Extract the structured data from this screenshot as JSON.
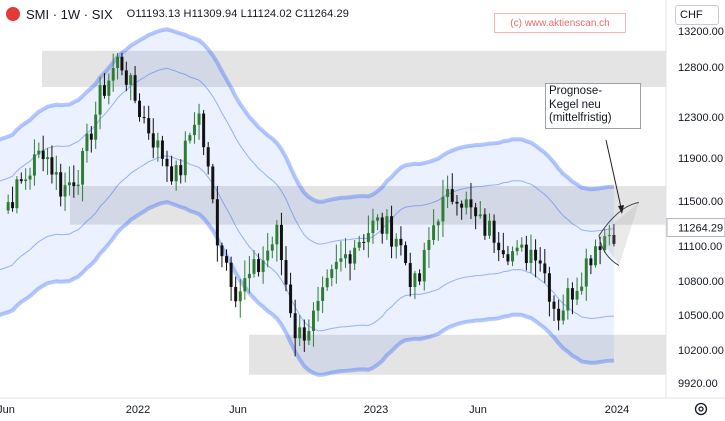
{
  "header": {
    "symbol": "SMI · 1W · SIX",
    "ohlc": "O11193.13 H11309.94 L11124.02 C11264.29"
  },
  "watermark": "(c) www.aktienscan.ch",
  "currency": "CHF",
  "annotation": "Prognose-\nKegel neu\n(mittelfristig)",
  "colors": {
    "bull": "#2e7d32",
    "bear": "#111111",
    "band": "#2962ff",
    "zone": "#9e9e9e",
    "accent": "#e53935"
  },
  "icons": [
    "exchange-logo-icon",
    "settings-gear-icon"
  ],
  "chart_data": {
    "type": "candlestick",
    "y_axis_ticks": [
      13200,
      12800,
      12300,
      11900,
      11500,
      11100,
      10800,
      10500,
      10200,
      9920
    ],
    "y_axis_tick_labels": [
      "13200.00",
      "12800.00",
      "12300.00",
      "11900.00",
      "11500.00",
      "11100.00",
      "10800.00",
      "10500.00",
      "10200.00",
      "9920.00"
    ],
    "last_price_label": "11264.29",
    "x_axis_labels": [
      "Jun",
      "2022",
      "Jun",
      "2023",
      "Jun",
      "2024"
    ],
    "ylim": [
      9850,
      13260
    ],
    "resistance_zones": [
      [
        12600,
        12980
      ],
      [
        11290,
        11640
      ],
      [
        9990,
        10330
      ]
    ],
    "close_path": [
      [
        "2021-05",
        11200
      ],
      [
        "2021-07",
        11700
      ],
      [
        "2021-08",
        12000
      ],
      [
        "2021-09",
        11600
      ],
      [
        "2021-10",
        11800
      ],
      [
        "2021-11",
        12500
      ],
      [
        "2021-12",
        12900
      ],
      [
        "2022-01",
        12400
      ],
      [
        "2022-02",
        12000
      ],
      [
        "2022-03",
        11700
      ],
      [
        "2022-04",
        12400
      ],
      [
        "2022-05",
        11200
      ],
      [
        "2022-06",
        10700
      ],
      [
        "2022-07",
        10900
      ],
      [
        "2022-08",
        11200
      ],
      [
        "2022-09",
        10300
      ],
      [
        "2022-10",
        10500
      ],
      [
        "2022-11",
        10900
      ],
      [
        "2022-12",
        11150
      ],
      [
        "2023-01",
        11300
      ],
      [
        "2023-02",
        11200
      ],
      [
        "2023-03",
        10700
      ],
      [
        "2023-04",
        11400
      ],
      [
        "2023-05",
        11600
      ],
      [
        "2023-06",
        11300
      ],
      [
        "2023-07",
        11200
      ],
      [
        "2023-08",
        11000
      ],
      [
        "2023-09",
        11100
      ],
      [
        "2023-10",
        10500
      ],
      [
        "2023-11",
        10800
      ],
      [
        "2023-12",
        11150
      ],
      [
        "2024-01",
        11264
      ]
    ]
  }
}
